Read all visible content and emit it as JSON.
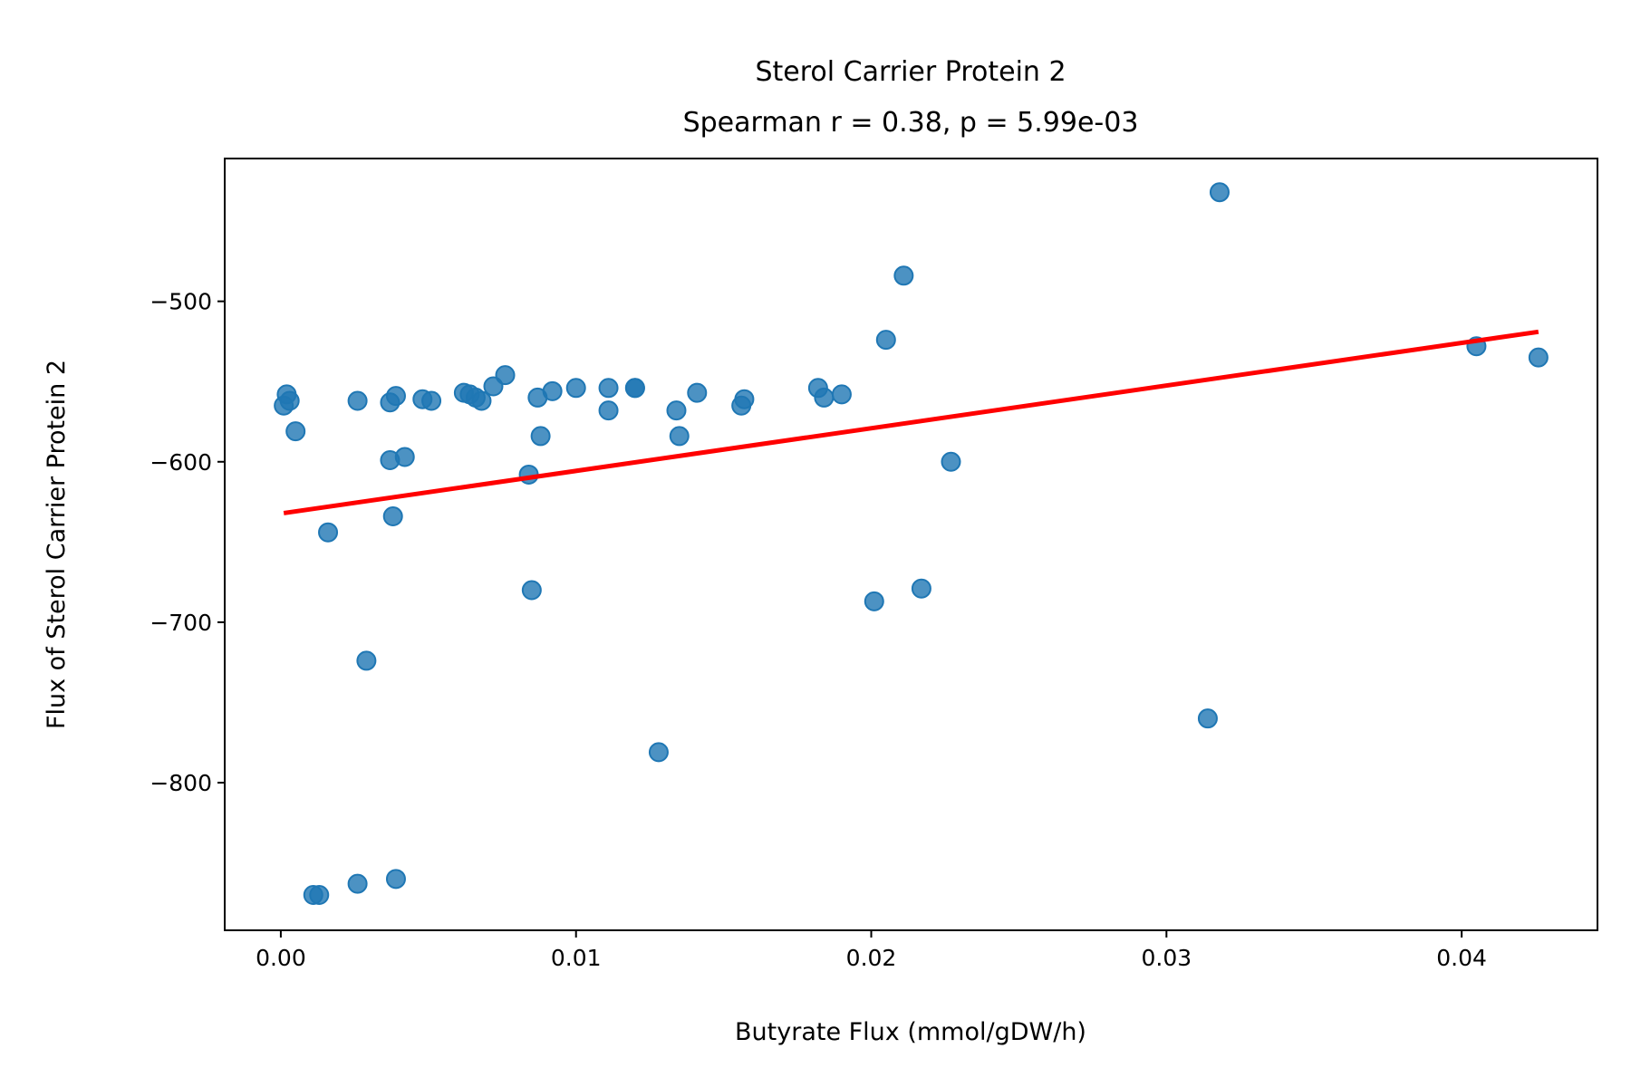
{
  "chart_data": {
    "type": "scatter",
    "title": "Sterol Carrier Protein 2",
    "subtitle": "Spearman r = 0.38, p = 5.99e-03",
    "xlabel": "Butyrate Flux (mmol/gDW/h)",
    "ylabel": "Flux of Sterol Carrier Protein 2",
    "xlim": [
      -0.0019,
      0.0446
    ],
    "ylim": [
      -892,
      -411
    ],
    "xticks": [
      0.0,
      0.01,
      0.02,
      0.03,
      0.04
    ],
    "xtick_labels": [
      "0.00",
      "0.01",
      "0.02",
      "0.03",
      "0.04"
    ],
    "yticks": [
      -500,
      -600,
      -700,
      -800
    ],
    "ytick_labels": [
      "−500",
      "−600",
      "−700",
      "−800"
    ],
    "grid": false,
    "colors": {
      "points": "#1f77b4",
      "fit_line": "#ff0000"
    },
    "series": [
      {
        "kind": "points",
        "points": [
          {
            "x": 0.0002,
            "y": -558
          },
          {
            "x": 0.0001,
            "y": -565
          },
          {
            "x": 0.0003,
            "y": -562
          },
          {
            "x": 0.0005,
            "y": -581
          },
          {
            "x": 0.0016,
            "y": -644
          },
          {
            "x": 0.0011,
            "y": -870
          },
          {
            "x": 0.0013,
            "y": -870
          },
          {
            "x": 0.0026,
            "y": -562
          },
          {
            "x": 0.0026,
            "y": -863
          },
          {
            "x": 0.0029,
            "y": -724
          },
          {
            "x": 0.0037,
            "y": -563
          },
          {
            "x": 0.0039,
            "y": -559
          },
          {
            "x": 0.0037,
            "y": -599
          },
          {
            "x": 0.0042,
            "y": -597
          },
          {
            "x": 0.0038,
            "y": -634
          },
          {
            "x": 0.0039,
            "y": -860
          },
          {
            "x": 0.0048,
            "y": -561
          },
          {
            "x": 0.0051,
            "y": -562
          },
          {
            "x": 0.0062,
            "y": -557
          },
          {
            "x": 0.0064,
            "y": -558
          },
          {
            "x": 0.0066,
            "y": -560
          },
          {
            "x": 0.0068,
            "y": -562
          },
          {
            "x": 0.0072,
            "y": -553
          },
          {
            "x": 0.0076,
            "y": -546
          },
          {
            "x": 0.0084,
            "y": -608
          },
          {
            "x": 0.0085,
            "y": -680
          },
          {
            "x": 0.0087,
            "y": -560
          },
          {
            "x": 0.0088,
            "y": -584
          },
          {
            "x": 0.0092,
            "y": -556
          },
          {
            "x": 0.01,
            "y": -554
          },
          {
            "x": 0.0111,
            "y": -554
          },
          {
            "x": 0.0111,
            "y": -568
          },
          {
            "x": 0.012,
            "y": -554
          },
          {
            "x": 0.012,
            "y": -554
          },
          {
            "x": 0.0128,
            "y": -781
          },
          {
            "x": 0.0134,
            "y": -568
          },
          {
            "x": 0.0135,
            "y": -584
          },
          {
            "x": 0.0141,
            "y": -557
          },
          {
            "x": 0.0156,
            "y": -565
          },
          {
            "x": 0.0157,
            "y": -561
          },
          {
            "x": 0.0182,
            "y": -554
          },
          {
            "x": 0.0184,
            "y": -560
          },
          {
            "x": 0.019,
            "y": -558
          },
          {
            "x": 0.0201,
            "y": -687
          },
          {
            "x": 0.0205,
            "y": -524
          },
          {
            "x": 0.0211,
            "y": -484
          },
          {
            "x": 0.0217,
            "y": -679
          },
          {
            "x": 0.0227,
            "y": -600
          },
          {
            "x": 0.0314,
            "y": -760
          },
          {
            "x": 0.0318,
            "y": -432
          },
          {
            "x": 0.0405,
            "y": -528
          },
          {
            "x": 0.0426,
            "y": -535
          }
        ]
      },
      {
        "kind": "line",
        "points": [
          {
            "x": 0.0001,
            "y": -632
          },
          {
            "x": 0.0426,
            "y": -519
          }
        ]
      }
    ]
  }
}
